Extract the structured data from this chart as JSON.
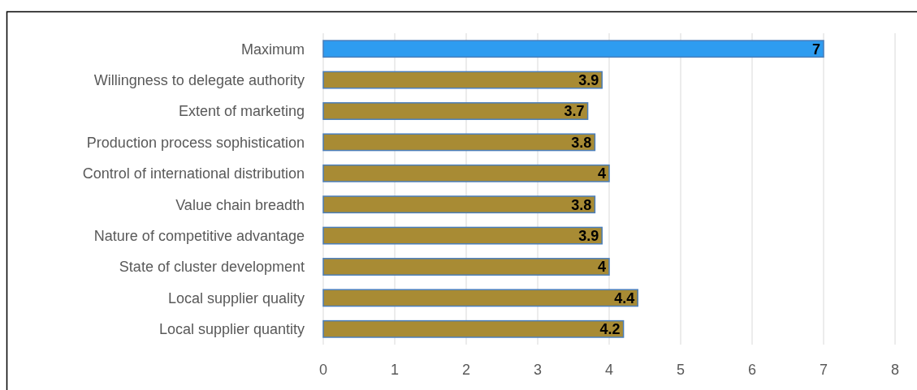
{
  "chart_data": {
    "type": "bar",
    "orientation": "horizontal",
    "categories": [
      "Maximum",
      "Willingness to delegate authority",
      "Extent of marketing",
      "Production process sophistication",
      "Control of international distribution",
      "Value chain breadth",
      "Nature of competitive advantage",
      "State of cluster development",
      "Local supplier quality",
      "Local supplier quantity"
    ],
    "values": [
      7,
      3.9,
      3.7,
      3.8,
      4,
      3.8,
      3.9,
      4,
      4.4,
      4.2
    ],
    "colors": [
      "#2e9cf0",
      "#a88b34",
      "#a88b34",
      "#a88b34",
      "#a88b34",
      "#a88b34",
      "#a88b34",
      "#a88b34",
      "#a88b34",
      "#a88b34"
    ],
    "xlim": [
      0,
      8
    ],
    "xticks": [
      0,
      1,
      2,
      3,
      4,
      5,
      6,
      7,
      8
    ],
    "grid": "x",
    "data_labels": true
  }
}
